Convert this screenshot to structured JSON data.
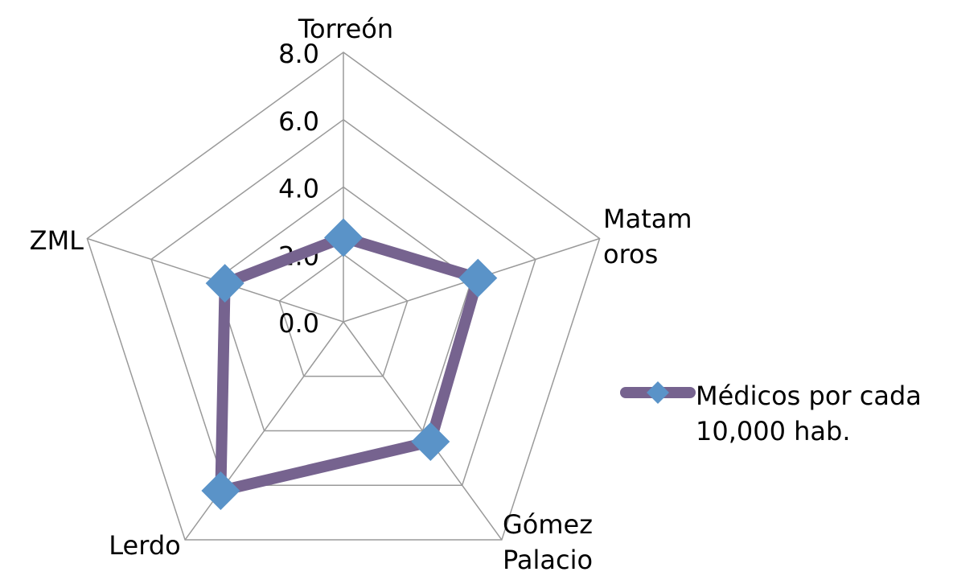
{
  "chart_data": {
    "type": "radar",
    "categories": [
      "Torreón",
      "Matamoros",
      "Gómez Palacio",
      "Lerdo",
      "ZML"
    ],
    "series": [
      {
        "name": "Médicos por cada 10,000 hab.",
        "color": "#76638f",
        "marker_color": "#5a93c8",
        "values": [
          2.5,
          4.2,
          4.4,
          6.2,
          3.7
        ]
      }
    ],
    "ylim": [
      0,
      8
    ],
    "yticks": [
      {
        "value": 0,
        "label": "0.0"
      },
      {
        "value": 2,
        "label": "2.0"
      },
      {
        "value": 4,
        "label": "4.0"
      },
      {
        "value": 6,
        "label": "6.0"
      },
      {
        "value": 8,
        "label": "8.0"
      }
    ],
    "grid": true,
    "legend": "right"
  }
}
